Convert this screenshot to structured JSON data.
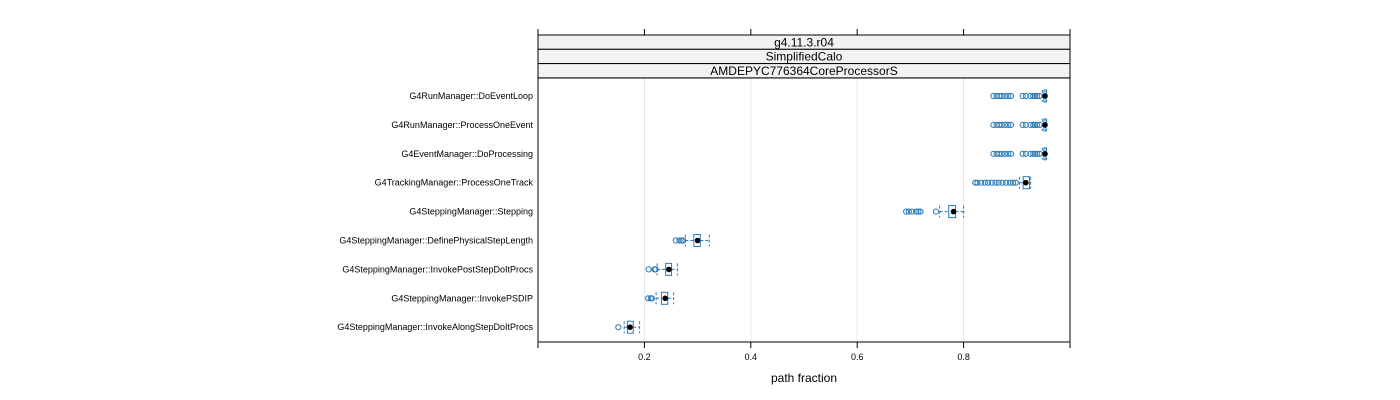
{
  "chart_data": {
    "type": "boxplot",
    "strips": [
      "g4.11.3.r04",
      "SimplifiedCalo",
      "AMDEPYC776364CoreProcessorS"
    ],
    "xlabel": "path fraction",
    "xlim": [
      0.0,
      1.0
    ],
    "xticks": [
      0.2,
      0.4,
      0.6,
      0.8
    ],
    "grid": "vertical",
    "colors": {
      "box": "#2b7bb8",
      "median": "#000000",
      "grid": "#e6e6e6",
      "strip": "#f2f2f2",
      "frame": "#000000"
    },
    "categories": [
      "G4RunManager::DoEventLoop",
      "G4RunManager::ProcessOneEvent",
      "G4EventManager::DoProcessing",
      "G4TrackingManager::ProcessOneTrack",
      "G4SteppingManager::Stepping",
      "G4SteppingManager::DefinePhysicalStepLength",
      "G4SteppingManager::InvokePostStepDoItProcs",
      "G4SteppingManager::InvokePSDIP",
      "G4SteppingManager::InvokeAlongStepDoItProcs"
    ],
    "series": [
      {
        "q1": 0.951,
        "median": 0.953,
        "q3": 0.955,
        "whisker_low": 0.948,
        "whisker_high": 0.956,
        "outliers": [
          0.856,
          0.862,
          0.867,
          0.872,
          0.878,
          0.884,
          0.889,
          0.911,
          0.917,
          0.926,
          0.931,
          0.934,
          0.938,
          0.943
        ]
      },
      {
        "q1": 0.951,
        "median": 0.953,
        "q3": 0.955,
        "whisker_low": 0.948,
        "whisker_high": 0.956,
        "outliers": [
          0.856,
          0.862,
          0.867,
          0.872,
          0.878,
          0.884,
          0.889,
          0.911,
          0.917,
          0.926,
          0.931,
          0.934,
          0.938,
          0.943
        ]
      },
      {
        "q1": 0.951,
        "median": 0.953,
        "q3": 0.955,
        "whisker_low": 0.948,
        "whisker_high": 0.956,
        "outliers": [
          0.856,
          0.862,
          0.867,
          0.872,
          0.878,
          0.884,
          0.889,
          0.911,
          0.917,
          0.926,
          0.931,
          0.934,
          0.938,
          0.943
        ]
      },
      {
        "q1": 0.912,
        "median": 0.917,
        "q3": 0.924,
        "whisker_low": 0.905,
        "whisker_high": 0.926,
        "outliers": [
          0.822,
          0.826,
          0.833,
          0.84,
          0.846,
          0.853,
          0.86,
          0.866,
          0.873,
          0.88,
          0.887,
          0.893,
          0.898
        ]
      },
      {
        "q1": 0.772,
        "median": 0.781,
        "q3": 0.785,
        "whisker_low": 0.755,
        "whisker_high": 0.8,
        "outliers": [
          0.692,
          0.697,
          0.703,
          0.711,
          0.715,
          0.719,
          0.748
        ]
      },
      {
        "q1": 0.293,
        "median": 0.3,
        "q3": 0.305,
        "whisker_low": 0.277,
        "whisker_high": 0.322,
        "outliers": [
          0.259,
          0.266,
          0.27,
          0.273
        ]
      },
      {
        "q1": 0.24,
        "median": 0.246,
        "q3": 0.251,
        "whisker_low": 0.224,
        "whisker_high": 0.262,
        "outliers": [
          0.208,
          0.219,
          0.221
        ]
      },
      {
        "q1": 0.232,
        "median": 0.239,
        "q3": 0.244,
        "whisker_low": 0.222,
        "whisker_high": 0.255,
        "outliers": [
          0.207,
          0.212,
          0.214
        ]
      },
      {
        "q1": 0.168,
        "median": 0.173,
        "q3": 0.179,
        "whisker_low": 0.162,
        "whisker_high": 0.191,
        "outliers": [
          0.151
        ]
      }
    ]
  }
}
